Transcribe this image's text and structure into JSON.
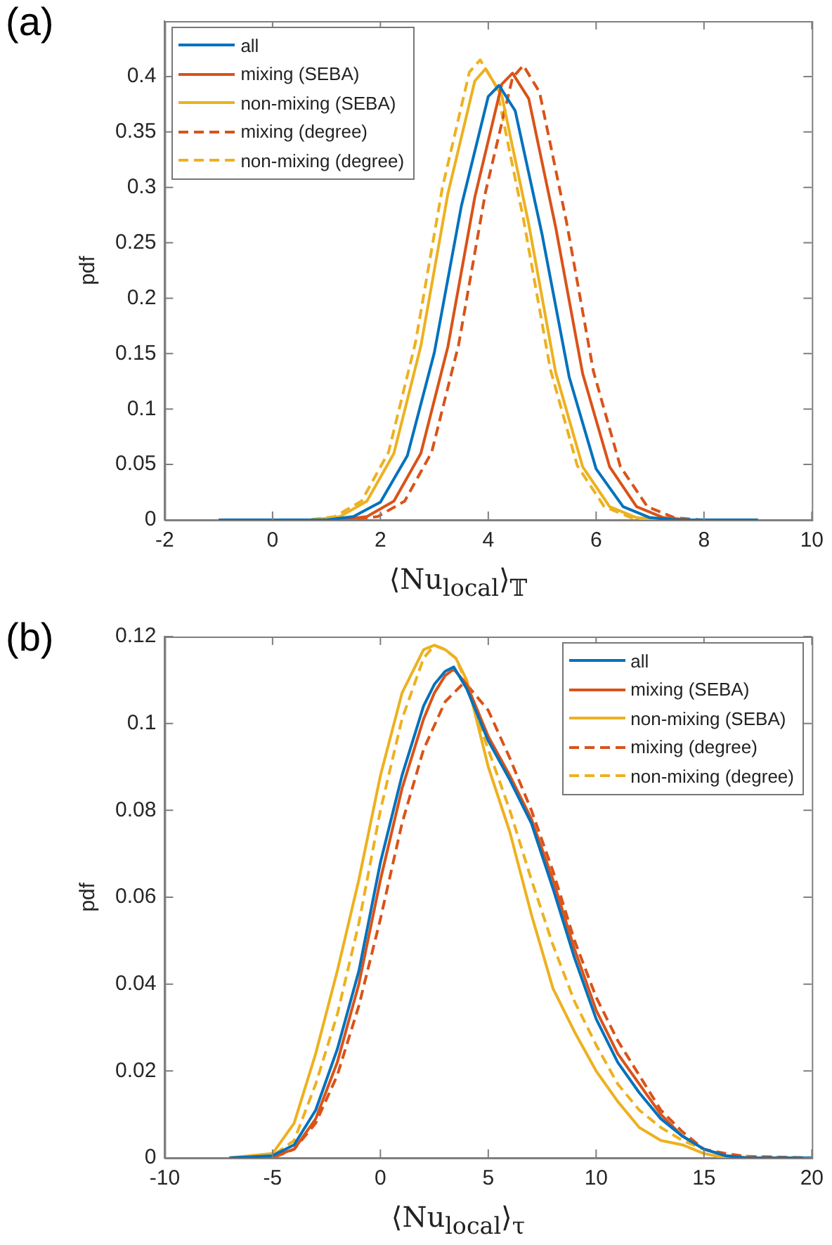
{
  "chart_data": [
    {
      "type": "line",
      "title": "(a)",
      "xlabel": "⟨Nu$_{local}$⟩$_{𝕋}$",
      "ylabel": "pdf",
      "xlim": [
        -2,
        10
      ],
      "xticks": [
        -2,
        0,
        2,
        4,
        6,
        8,
        10
      ],
      "ylim": [
        0,
        0.45
      ],
      "yticks": [
        0,
        0.05,
        0.1,
        0.15,
        0.2,
        0.25,
        0.3,
        0.35,
        0.4
      ],
      "grid": false,
      "legend": "top left",
      "series": [
        {
          "name": "all",
          "color": "#0072bd",
          "line_style": "solid",
          "x": [
            -1,
            1,
            1.5,
            2,
            2.5,
            3,
            3.5,
            4,
            4.2,
            4.5,
            5,
            5.5,
            6,
            6.5,
            7,
            7.5,
            9
          ],
          "values": [
            0,
            0,
            0.003,
            0.016,
            0.058,
            0.151,
            0.283,
            0.382,
            0.392,
            0.369,
            0.257,
            0.129,
            0.046,
            0.012,
            0.002,
            0,
            0
          ]
        },
        {
          "name": "mixing (SEBA)",
          "color": "#d95319",
          "line_style": "solid",
          "x": [
            -1,
            1.25,
            1.75,
            2.25,
            2.75,
            3.25,
            3.75,
            4.25,
            4.45,
            4.75,
            5.25,
            5.75,
            6.25,
            6.75,
            7.25,
            7.75,
            9
          ],
          "values": [
            0,
            0,
            0.003,
            0.017,
            0.06,
            0.156,
            0.291,
            0.393,
            0.403,
            0.38,
            0.264,
            0.132,
            0.048,
            0.012,
            0.002,
            0,
            0
          ]
        },
        {
          "name": "non-mixing (SEBA)",
          "color": "#edb120",
          "line_style": "solid",
          "x": [
            -1,
            0.75,
            1.25,
            1.75,
            2.25,
            2.75,
            3.25,
            3.75,
            3.95,
            4.25,
            4.75,
            5.25,
            5.75,
            6.25,
            6.75,
            7.25,
            9
          ],
          "values": [
            0,
            0,
            0.003,
            0.017,
            0.06,
            0.157,
            0.294,
            0.396,
            0.407,
            0.383,
            0.267,
            0.133,
            0.048,
            0.012,
            0.002,
            0,
            0
          ]
        },
        {
          "name": "mixing (degree)",
          "color": "#d95319",
          "line_style": "dashed",
          "x": [
            -1,
            1.45,
            1.95,
            2.45,
            2.95,
            3.45,
            3.95,
            4.45,
            4.65,
            4.95,
            5.45,
            5.95,
            6.45,
            6.95,
            7.45,
            7.95,
            9
          ],
          "values": [
            0,
            0,
            0.003,
            0.017,
            0.061,
            0.158,
            0.296,
            0.399,
            0.41,
            0.386,
            0.269,
            0.134,
            0.048,
            0.012,
            0.002,
            0,
            0
          ]
        },
        {
          "name": "non-mixing (degree)",
          "color": "#edb120",
          "line_style": "dashed",
          "x": [
            -1,
            0.65,
            1.15,
            1.65,
            2.15,
            2.65,
            3.15,
            3.65,
            3.85,
            4.15,
            4.65,
            5.15,
            5.65,
            6.15,
            6.65,
            7.15,
            9
          ],
          "values": [
            0,
            0,
            0.003,
            0.017,
            0.061,
            0.16,
            0.3,
            0.404,
            0.415,
            0.391,
            0.272,
            0.136,
            0.049,
            0.012,
            0.002,
            0,
            0
          ]
        }
      ]
    },
    {
      "type": "line",
      "title": "(b)",
      "xlabel": "⟨Nu$_{local}$⟩$_{τ}$",
      "ylabel": "pdf",
      "xlim": [
        -10,
        20
      ],
      "xticks": [
        -10,
        -5,
        0,
        5,
        10,
        15,
        20
      ],
      "ylim": [
        0,
        0.12
      ],
      "yticks": [
        0,
        0.02,
        0.04,
        0.06,
        0.08,
        0.1,
        0.12
      ],
      "grid": false,
      "legend": "top right",
      "series": [
        {
          "name": "all",
          "color": "#0072bd",
          "line_style": "solid",
          "x": [
            -7,
            -5,
            -4,
            -3,
            -2,
            -1,
            0,
            1,
            2,
            2.5,
            3,
            3.4,
            4,
            4.5,
            5,
            6,
            7,
            8,
            9,
            10,
            11,
            12,
            13,
            14,
            15,
            16,
            17,
            20
          ],
          "values": [
            0,
            0.0005,
            0.003,
            0.011,
            0.025,
            0.043,
            0.068,
            0.088,
            0.104,
            0.109,
            0.112,
            0.113,
            0.108,
            0.102,
            0.096,
            0.087,
            0.077,
            0.062,
            0.046,
            0.032,
            0.022,
            0.015,
            0.009,
            0.005,
            0.002,
            0.0005,
            0,
            0
          ]
        },
        {
          "name": "mixing (SEBA)",
          "color": "#d95319",
          "line_style": "solid",
          "x": [
            -7,
            -5,
            -4,
            -3,
            -2,
            -1,
            0,
            1,
            2,
            2.5,
            3,
            3.4,
            4,
            4.5,
            5,
            6,
            7,
            8,
            9,
            10,
            11,
            12,
            13,
            14,
            15,
            16,
            17,
            20
          ],
          "values": [
            0,
            0.0003,
            0.002,
            0.009,
            0.022,
            0.04,
            0.064,
            0.085,
            0.101,
            0.107,
            0.111,
            0.1125,
            0.109,
            0.103,
            0.097,
            0.088,
            0.078,
            0.064,
            0.048,
            0.034,
            0.024,
            0.017,
            0.01,
            0.005,
            0.002,
            0.0005,
            0,
            0
          ]
        },
        {
          "name": "non-mixing (SEBA)",
          "color": "#edb120",
          "line_style": "solid",
          "x": [
            -7,
            -5,
            -4,
            -3,
            -2,
            -1,
            0,
            1,
            2,
            2.5,
            3,
            3.5,
            4,
            4.5,
            5,
            6,
            7,
            8,
            9,
            10,
            11,
            12,
            13,
            14,
            15,
            16,
            20
          ],
          "values": [
            0,
            0.001,
            0.008,
            0.024,
            0.043,
            0.064,
            0.088,
            0.107,
            0.117,
            0.118,
            0.117,
            0.115,
            0.11,
            0.1,
            0.09,
            0.075,
            0.056,
            0.039,
            0.029,
            0.02,
            0.013,
            0.007,
            0.004,
            0.003,
            0.001,
            0,
            0
          ]
        },
        {
          "name": "mixing (degree)",
          "color": "#d95319",
          "line_style": "dashed",
          "x": [
            -7,
            -5,
            -4,
            -3,
            -2,
            -1,
            0,
            1,
            2,
            3,
            3.8,
            4,
            5,
            6,
            7,
            8,
            9,
            10,
            11,
            12,
            13,
            14,
            15,
            16,
            17,
            20
          ],
          "values": [
            0,
            0,
            0.002,
            0.008,
            0.019,
            0.035,
            0.055,
            0.077,
            0.094,
            0.105,
            0.109,
            0.109,
            0.103,
            0.092,
            0.08,
            0.066,
            0.05,
            0.037,
            0.027,
            0.019,
            0.011,
            0.006,
            0.002,
            0.001,
            0.0003,
            0
          ]
        },
        {
          "name": "non-mixing (degree)",
          "color": "#edb120",
          "line_style": "dashed",
          "x": [
            -7,
            -5,
            -4,
            -3,
            -2,
            -1,
            0,
            1,
            2,
            2.5,
            3,
            3.5,
            4,
            4.5,
            5,
            6,
            7,
            8,
            9,
            10,
            11,
            12,
            13,
            14,
            15,
            16,
            20
          ],
          "values": [
            0,
            0.0005,
            0.004,
            0.017,
            0.033,
            0.054,
            0.08,
            0.101,
            0.115,
            0.118,
            0.117,
            0.115,
            0.109,
            0.101,
            0.094,
            0.08,
            0.064,
            0.049,
            0.036,
            0.026,
            0.017,
            0.011,
            0.007,
            0.004,
            0.002,
            0.0005,
            0
          ]
        }
      ]
    }
  ]
}
